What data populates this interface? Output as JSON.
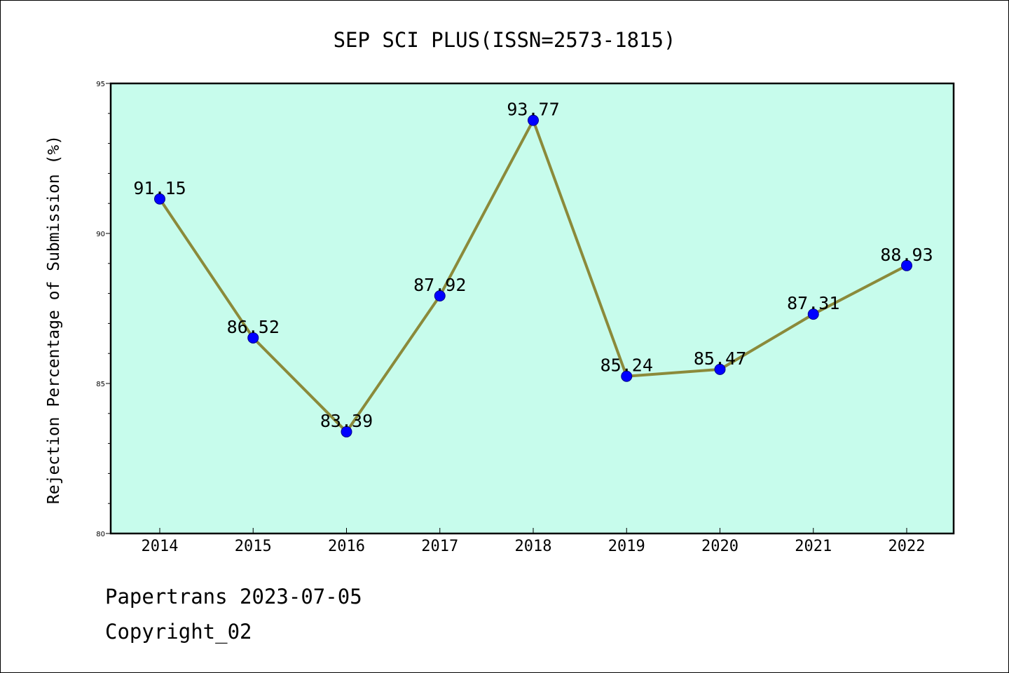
{
  "chart_data": {
    "type": "line",
    "title": "SEP SCI PLUS(ISSN=2573-1815)",
    "xlabel": "",
    "ylabel": "Rejection Percentage of Submission (%)",
    "categories": [
      "2014",
      "2015",
      "2016",
      "2017",
      "2018",
      "2019",
      "2020",
      "2021",
      "2022"
    ],
    "series": [
      {
        "values": [
          91.15,
          86.52,
          83.39,
          87.92,
          93.77,
          85.24,
          85.47,
          87.31,
          88.93
        ],
        "labels": [
          "91.15",
          "86.52",
          "83.39",
          "87.92",
          "93.77",
          "85.24",
          "85.47",
          "87.31",
          "88.93"
        ]
      }
    ],
    "ylim": [
      80,
      95
    ],
    "yticks": [
      "80",
      "85",
      "90",
      "95"
    ],
    "grid": false,
    "legend": "none",
    "colors": {
      "plot_background": "#c7fcec",
      "line": "#8b8a3a",
      "marker": "#0000ff",
      "marker_edge": "#00008b"
    }
  },
  "footer": {
    "line1": "Papertrans 2023-07-05",
    "line2": "Copyright_02"
  }
}
